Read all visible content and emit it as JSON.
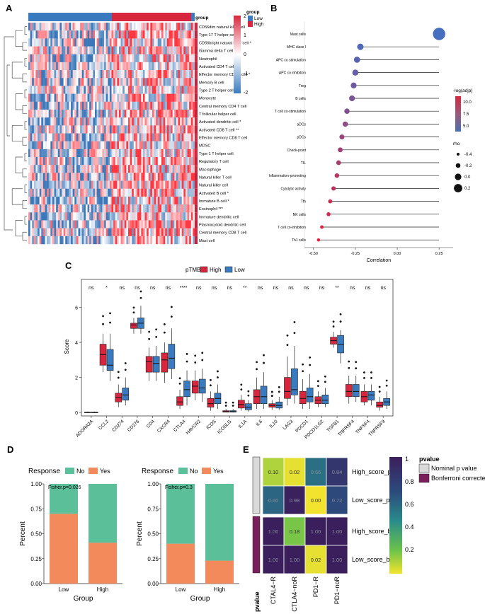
{
  "panels": {
    "a": "A",
    "b": "B",
    "c": "C",
    "d": "D",
    "e": "E"
  },
  "panel_a": {
    "legend_title": "group",
    "legend_items": [
      {
        "label": "Low",
        "color": "#3a7bbf"
      },
      {
        "label": "High",
        "color": "#d7263d"
      }
    ],
    "colorbar_ticks": [
      "2",
      "1",
      "0",
      "-1",
      "-2"
    ],
    "rows": [
      "CD56dim natural killer cell",
      "Type 17 T helper cell",
      "CD56bright natural killer cell *",
      "Gamma delta T cell",
      "Neutrophil",
      "Activated CD4 T cell ***",
      "Effector memory CD4 T cell *",
      "Memory B cell",
      "Type 2 T helper cell",
      "Monocyte",
      "Central memory CD4 T cell",
      "T follicular helper cell",
      "Activated dendritic cell *",
      "Activated CD8 T cell **",
      "Effector memory CD8 T cell",
      "MDSC",
      "Type 1 T helper cell",
      "Regulatory T cell",
      "Macrophage",
      "Natural killer T cell",
      "Natural killer cell",
      "Activated B cell *",
      "Immature B cell *",
      "Eosinophil ***",
      "Immature dendritic cell",
      "Plasmacytoid dendritic cell",
      "Central memory CD8 T cell",
      "Mast cell"
    ]
  },
  "panel_b": {
    "chart_data": {
      "type": "scatter",
      "categories": [
        "Mast cells",
        "MHC class I",
        "APC co stimulation",
        "APC co inhibition",
        "Treg",
        "B cells",
        "T cell co-stimulation",
        "aDCs",
        "pDCs",
        "Check-point",
        "TIL",
        "Inflammation-promoting",
        "Cytolytic activity",
        "Tfh",
        "NK cells",
        "T cell co-inhibition",
        "Th1 cells"
      ],
      "values": [
        0.25,
        -0.22,
        -0.24,
        -0.25,
        -0.26,
        -0.27,
        -0.3,
        -0.31,
        -0.33,
        -0.34,
        -0.35,
        -0.36,
        -0.38,
        -0.4,
        -0.41,
        -0.45,
        -0.47
      ],
      "xlabel": "Correlation",
      "xlim": [
        -0.52,
        0.3
      ],
      "xticks": [
        "-0.50",
        "-0.25",
        "0.00",
        "0.25"
      ],
      "color_title": "-log(adjp)",
      "color_ticks": [
        "10.0",
        "7.5",
        "5.0"
      ],
      "size_title": "rho",
      "size_ticks": [
        "-0.4",
        "-0.2",
        "0.0",
        "0.2"
      ]
    }
  },
  "panel_c": {
    "chart_data": {
      "type": "box",
      "legend_title": "pTMB",
      "series": [
        {
          "name": "High",
          "color": "#d7263d"
        },
        {
          "name": "Low",
          "color": "#3a7bbf"
        }
      ],
      "categories": [
        "ADORA2A",
        "CCL2",
        "CD274",
        "CD276",
        "CD4",
        "CXCR4",
        "CTLA4",
        "HAVCR2",
        "ICOS",
        "ICOSLG",
        "IL1A",
        "IL6",
        "IL10",
        "LAG3",
        "PDCD1",
        "PDCD1LG2",
        "TGFB1",
        "TNFRSF4",
        "TNFSF4",
        "TNFRSF9"
      ],
      "significance": [
        "ns",
        "*",
        "ns",
        "ns",
        "ns",
        "ns",
        "****",
        "ns",
        "ns",
        "ns",
        "**",
        "ns",
        "ns",
        "ns",
        "ns",
        "ns",
        "**",
        "ns",
        "ns",
        "ns"
      ],
      "high_box": [
        [
          0,
          0,
          0,
          0.02,
          0.05
        ],
        [
          2.3,
          2.7,
          3.3,
          3.9,
          4.5
        ],
        [
          0.3,
          0.6,
          0.85,
          1.1,
          1.6
        ],
        [
          4.5,
          4.8,
          5.0,
          5.1,
          5.4
        ],
        [
          1.8,
          2.3,
          2.9,
          3.2,
          3.7
        ],
        [
          1.7,
          2.3,
          3.0,
          3.4,
          4.0
        ],
        [
          0.2,
          0.4,
          0.6,
          0.9,
          1.3
        ],
        [
          0.7,
          1.1,
          1.5,
          1.8,
          2.4
        ],
        [
          0.1,
          0.3,
          0.5,
          0.8,
          1.2
        ],
        [
          0,
          0.02,
          0.05,
          0.1,
          0.2
        ],
        [
          0.1,
          0.25,
          0.45,
          0.7,
          1.0
        ],
        [
          0.2,
          0.5,
          0.9,
          1.3,
          2.0
        ],
        [
          0.15,
          0.3,
          0.4,
          0.5,
          0.7
        ],
        [
          0.4,
          0.8,
          1.2,
          2.0,
          3.2
        ],
        [
          0.2,
          0.5,
          0.8,
          1.2,
          1.9
        ],
        [
          0.3,
          0.5,
          0.7,
          0.9,
          1.2
        ],
        [
          3.7,
          3.9,
          4.1,
          4.3,
          4.6
        ],
        [
          0.5,
          0.9,
          1.2,
          1.6,
          2.1
        ],
        [
          0.4,
          0.6,
          0.9,
          1.2,
          1.6
        ],
        [
          0.1,
          0.3,
          0.4,
          0.6,
          0.9
        ]
      ],
      "low_box": [
        [
          0,
          0,
          0,
          0.02,
          0.05
        ],
        [
          1.8,
          2.4,
          2.7,
          3.6,
          4.5
        ],
        [
          0.4,
          0.7,
          1.0,
          1.4,
          2.0
        ],
        [
          4.5,
          4.8,
          5.1,
          5.4,
          6.1
        ],
        [
          1.8,
          2.3,
          2.8,
          3.2,
          3.8
        ],
        [
          1.9,
          2.5,
          3.1,
          3.9,
          4.8
        ],
        [
          0.4,
          0.9,
          1.3,
          1.8,
          2.4
        ],
        [
          0.6,
          1.1,
          1.4,
          1.9,
          2.5
        ],
        [
          0.2,
          0.5,
          0.8,
          1.1,
          1.6
        ],
        [
          0,
          0.02,
          0.05,
          0.1,
          0.2
        ],
        [
          0.05,
          0.15,
          0.3,
          0.5,
          0.7
        ],
        [
          0.2,
          0.5,
          0.9,
          1.5,
          2.3
        ],
        [
          0.15,
          0.25,
          0.4,
          0.6,
          0.9
        ],
        [
          0.5,
          1.0,
          1.3,
          2.5,
          3.8
        ],
        [
          0.2,
          0.6,
          0.9,
          1.4,
          2.2
        ],
        [
          0.3,
          0.5,
          0.7,
          1.0,
          1.4
        ],
        [
          2.8,
          3.4,
          3.9,
          4.4,
          4.7
        ],
        [
          0.6,
          0.9,
          1.2,
          1.6,
          2.1
        ],
        [
          0.4,
          0.7,
          1.0,
          1.2,
          1.6
        ],
        [
          0.2,
          0.4,
          0.6,
          0.8,
          1.2
        ]
      ],
      "ylabel": "Score",
      "ylim": [
        -0.2,
        7.6
      ],
      "yticks": [
        "0",
        "2",
        "4",
        "6"
      ]
    }
  },
  "panel_d": {
    "legend_title": "Response",
    "legend_items": [
      {
        "label": "No",
        "color": "#5bbf9a"
      },
      {
        "label": "Yes",
        "color": "#f28a5b"
      }
    ],
    "ylabel": "Percent",
    "xlabel": "Group",
    "yticks": [
      "1.00",
      "0.75",
      "0.50",
      "0.25",
      "0.00"
    ],
    "charts": [
      {
        "annotation": "Fisher.p=0.026",
        "categories": [
          "Low",
          "High"
        ],
        "yes": [
          0.7,
          0.41
        ]
      },
      {
        "annotation": "Fisher.p=0.3",
        "categories": [
          "Low",
          "High"
        ],
        "yes": [
          0.4,
          0.23
        ]
      }
    ]
  },
  "panel_e": {
    "chart_data": {
      "type": "heatmap",
      "columns": [
        "CTAL4−R",
        "CTLA4−noR",
        "PD1−R",
        "PD1−noR"
      ],
      "rows": [
        "High_score_p",
        "Low_score_p",
        "High_score_b",
        "Low_score_b"
      ],
      "values": [
        [
          "0.10",
          "0.02",
          "0.56",
          "0.84"
        ],
        [
          "0.60",
          "0.98",
          "0.00",
          "0.72"
        ],
        [
          "1.00",
          "0.18",
          "1.00",
          "1.00"
        ],
        [
          "1.00",
          "1.00",
          "0.02",
          "1.00"
        ]
      ],
      "group_label": "pvalue",
      "legend_title": "pvalue",
      "legend_items": [
        {
          "label": "Nominal p value",
          "color": "#d9d9d9"
        },
        {
          "label": "Bonferroni corrected",
          "color": "#7b1f5c"
        }
      ],
      "colorbar_ticks": [
        "1",
        "0.8",
        "0.6",
        "0.4",
        "0.2"
      ]
    }
  }
}
